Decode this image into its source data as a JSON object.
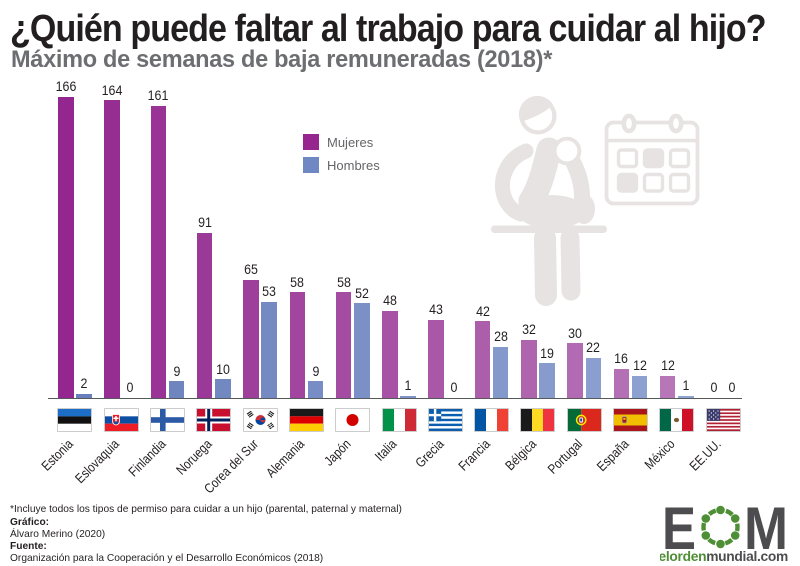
{
  "title": "¿Quién puede faltar al trabajo para cuidar al hijo?",
  "subtitle": "Máximo de semanas de baja remuneradas (2018)*",
  "legend": {
    "items": [
      {
        "label": "Mujeres",
        "color": "#97258e"
      },
      {
        "label": "Hombres",
        "color": "#6f88c4"
      }
    ]
  },
  "chart_data": {
    "type": "bar",
    "title": "¿Quién puede faltar al trabajo para cuidar al hijo?",
    "subtitle": "Máximo de semanas de baja remuneradas (2018)*",
    "unit": "semanas",
    "categories": [
      "Estonia",
      "Eslovaquia",
      "Finlandia",
      "Noruega",
      "Corea del Sur",
      "Alemania",
      "Japón",
      "Italia",
      "Grecia",
      "Francia",
      "Bélgica",
      "Portugal",
      "España",
      "México",
      "EE.UU."
    ],
    "flags": [
      "estonia",
      "eslovaquia",
      "finlandia",
      "noruega",
      "corea-del-sur",
      "alemania",
      "japon",
      "italia",
      "grecia",
      "francia",
      "belgica",
      "portugal",
      "espana",
      "mexico",
      "eeuu"
    ],
    "series": [
      {
        "name": "Mujeres",
        "values": [
          166,
          164,
          161,
          91,
          65,
          58,
          58,
          48,
          43,
          42,
          32,
          30,
          16,
          12,
          0
        ],
        "color_start": "#93278f",
        "color_end": "#ba7cbb"
      },
      {
        "name": "Hombres",
        "values": [
          2,
          0,
          9,
          10,
          53,
          9,
          52,
          1,
          0,
          28,
          19,
          22,
          12,
          1,
          0
        ],
        "color_start": "#697fbc",
        "color_end": "#93a7d4"
      }
    ],
    "ylim": [
      0,
      175
    ],
    "grid": false,
    "legend_position": "upper middle",
    "value_labels": true
  },
  "watermark": {
    "icons": [
      "parent-holding-baby-icon",
      "calendar-icon"
    ],
    "color": "#e7e3e2"
  },
  "footer": {
    "note": "*Incluye todos los tipos de permiso para cuidar a un hijo (parental, paternal y maternal)",
    "grafico_label": "Gráfico:",
    "grafico_value": "Álvaro Merino (2020)",
    "fuente_label": "Fuente:",
    "fuente_value": "Organización para la Cooperación y el Desarrollo Económicos (2018)"
  },
  "logo": {
    "letter_e": "E",
    "letter_m": "M",
    "site_green": "elorden",
    "site_dark": "mundial.com",
    "green": "#4e8e35",
    "dark": "#4d4d4f"
  }
}
